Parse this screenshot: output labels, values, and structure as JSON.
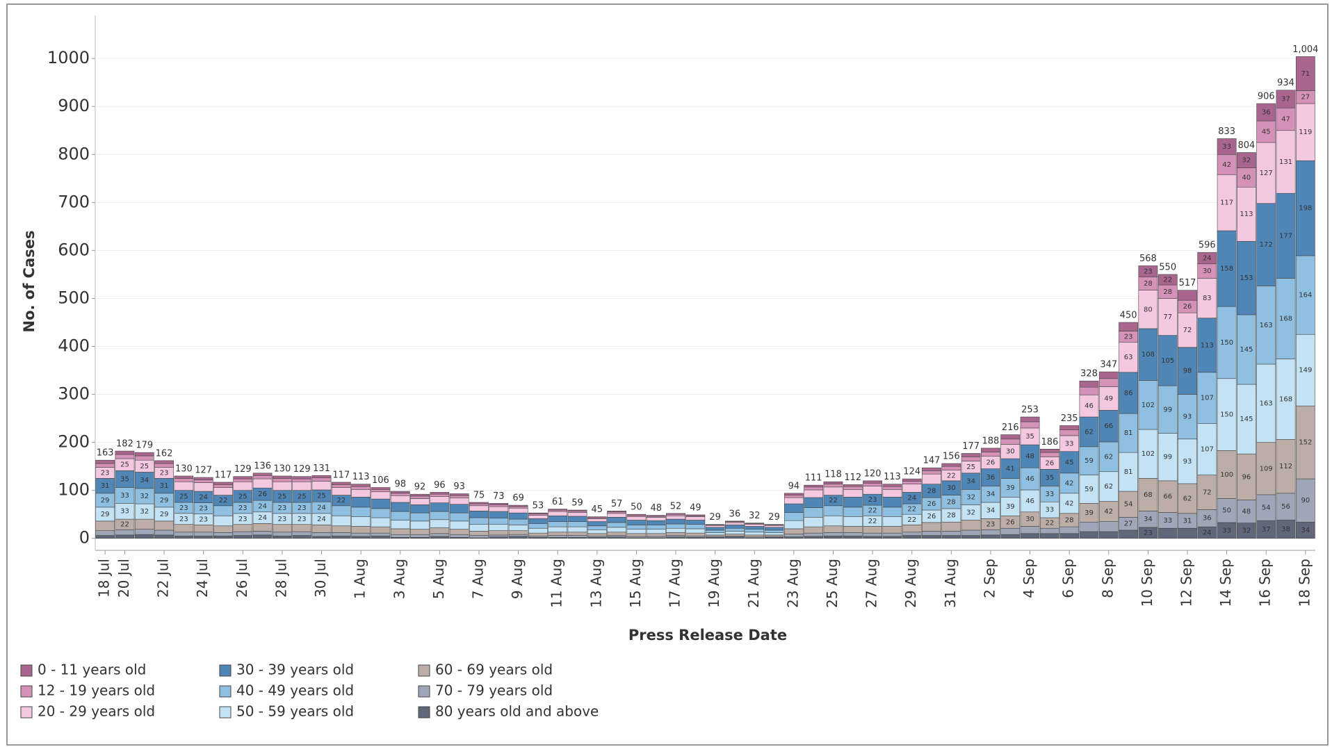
{
  "chart_data": {
    "type": "stacked_bar",
    "x_label": "Press Release Date",
    "y_label": "No. of Cases",
    "categories": [
      "18 Jul",
      "20 Jul",
      null,
      "22 Jul",
      null,
      "24 Jul",
      null,
      "26 Jul",
      null,
      "28 Jul",
      null,
      "30 Jul",
      null,
      "1 Aug",
      null,
      "3 Aug",
      null,
      "5 Aug",
      null,
      "7 Aug",
      null,
      "9 Aug",
      null,
      "11 Aug",
      null,
      "13 Aug",
      null,
      "15 Aug",
      null,
      "17 Aug",
      null,
      "19 Aug",
      null,
      "21 Aug",
      null,
      "23 Aug",
      null,
      "25 Aug",
      null,
      "27 Aug",
      null,
      "29 Aug",
      null,
      "31 Aug",
      null,
      "2 Sep",
      null,
      "4 Sep",
      null,
      "6 Sep",
      null,
      "8 Sep",
      null,
      "10 Sep",
      null,
      "12 Sep",
      null,
      "14 Sep",
      null,
      "16 Sep",
      null,
      "18 Sep"
    ],
    "series": [
      {
        "name": "0 - 11 years old",
        "color": "#a8668f",
        "values": [
          7,
          7,
          7,
          6,
          5,
          5,
          5,
          5,
          5,
          5,
          5,
          5,
          5,
          5,
          4,
          4,
          4,
          4,
          4,
          3,
          3,
          3,
          2,
          2,
          2,
          2,
          2,
          2,
          2,
          2,
          2,
          1,
          1,
          1,
          1,
          4,
          4,
          5,
          4,
          5,
          5,
          5,
          6,
          6,
          7,
          8,
          9,
          10,
          7,
          9,
          13,
          14,
          18,
          23,
          22,
          21,
          24,
          33,
          32,
          36,
          37,
          71
        ]
      },
      {
        "name": "12 - 19 years old",
        "color": "#d592b9",
        "values": [
          8,
          9,
          9,
          8,
          7,
          6,
          6,
          6,
          7,
          7,
          6,
          7,
          6,
          6,
          5,
          5,
          5,
          5,
          5,
          4,
          4,
          3,
          3,
          3,
          3,
          2,
          3,
          3,
          2,
          3,
          2,
          1,
          2,
          2,
          1,
          5,
          6,
          6,
          6,
          6,
          6,
          6,
          7,
          8,
          9,
          9,
          11,
          13,
          9,
          12,
          16,
          17,
          23,
          28,
          28,
          26,
          30,
          42,
          40,
          45,
          47,
          27
        ]
      },
      {
        "name": "20 - 29 years old",
        "color": "#f5c8e2",
        "values": [
          23,
          25,
          25,
          23,
          18,
          18,
          16,
          18,
          19,
          18,
          18,
          18,
          16,
          16,
          15,
          14,
          13,
          13,
          13,
          11,
          10,
          10,
          7,
          9,
          8,
          6,
          8,
          7,
          7,
          7,
          7,
          4,
          5,
          4,
          4,
          13,
          16,
          17,
          16,
          17,
          16,
          17,
          21,
          22,
          25,
          26,
          30,
          35,
          26,
          33,
          46,
          49,
          63,
          80,
          77,
          72,
          83,
          117,
          113,
          127,
          131,
          119
        ]
      },
      {
        "name": "30 - 39 years old",
        "color": "#4f86b5",
        "values": [
          31,
          35,
          34,
          31,
          25,
          24,
          22,
          25,
          26,
          25,
          25,
          25,
          22,
          21,
          20,
          19,
          17,
          18,
          18,
          14,
          14,
          13,
          10,
          12,
          11,
          9,
          11,
          10,
          9,
          10,
          9,
          6,
          7,
          6,
          6,
          18,
          21,
          22,
          21,
          23,
          21,
          24,
          28,
          30,
          34,
          36,
          41,
          48,
          35,
          45,
          62,
          66,
          86,
          108,
          105,
          98,
          113,
          158,
          153,
          172,
          177,
          198
        ]
      },
      {
        "name": "40 - 49 years old",
        "color": "#8fc0e2",
        "values": [
          29,
          33,
          32,
          29,
          23,
          23,
          21,
          23,
          24,
          23,
          23,
          24,
          21,
          20,
          19,
          18,
          17,
          17,
          17,
          14,
          13,
          12,
          10,
          11,
          11,
          8,
          10,
          9,
          9,
          9,
          9,
          5,
          6,
          6,
          5,
          17,
          20,
          21,
          20,
          22,
          20,
          22,
          26,
          28,
          32,
          34,
          39,
          46,
          33,
          42,
          59,
          62,
          81,
          102,
          99,
          93,
          107,
          150,
          145,
          163,
          168,
          164
        ]
      },
      {
        "name": "50 - 59 years old",
        "color": "#c3e3f4",
        "values": [
          29,
          33,
          32,
          29,
          23,
          23,
          21,
          23,
          24,
          23,
          23,
          24,
          21,
          20,
          19,
          18,
          17,
          17,
          17,
          14,
          13,
          12,
          10,
          11,
          11,
          8,
          10,
          9,
          9,
          9,
          9,
          5,
          6,
          6,
          5,
          17,
          20,
          21,
          20,
          22,
          20,
          22,
          26,
          28,
          32,
          34,
          39,
          46,
          33,
          42,
          59,
          62,
          81,
          102,
          99,
          93,
          107,
          150,
          145,
          163,
          168,
          149
        ]
      },
      {
        "name": "60 - 69 years old",
        "color": "#bcaea6",
        "values": [
          20,
          22,
          21,
          19,
          16,
          15,
          14,
          15,
          16,
          16,
          15,
          16,
          14,
          14,
          13,
          12,
          11,
          12,
          11,
          9,
          9,
          8,
          6,
          7,
          7,
          5,
          7,
          6,
          6,
          6,
          6,
          3,
          4,
          4,
          3,
          11,
          13,
          14,
          13,
          14,
          14,
          15,
          18,
          19,
          21,
          23,
          26,
          30,
          22,
          28,
          39,
          42,
          54,
          68,
          66,
          62,
          72,
          100,
          96,
          109,
          112,
          152
        ]
      },
      {
        "name": "70 - 79 years old",
        "color": "#9ea6b8",
        "values": [
          10,
          11,
          11,
          10,
          8,
          8,
          7,
          8,
          8,
          8,
          8,
          8,
          7,
          7,
          6,
          6,
          6,
          6,
          6,
          5,
          4,
          4,
          3,
          4,
          4,
          3,
          3,
          3,
          3,
          3,
          3,
          2,
          2,
          2,
          2,
          6,
          7,
          7,
          7,
          7,
          7,
          7,
          9,
          9,
          11,
          11,
          13,
          15,
          11,
          14,
          20,
          21,
          27,
          34,
          33,
          31,
          36,
          50,
          48,
          54,
          56,
          90
        ]
      },
      {
        "name": "80 years old and above",
        "color": "#5f6779",
        "values": [
          6,
          7,
          8,
          7,
          5,
          5,
          5,
          6,
          7,
          5,
          6,
          4,
          5,
          4,
          5,
          2,
          2,
          4,
          2,
          1,
          3,
          4,
          2,
          2,
          2,
          2,
          3,
          1,
          1,
          3,
          2,
          2,
          3,
          1,
          2,
          3,
          4,
          5,
          5,
          4,
          4,
          6,
          6,
          6,
          6,
          7,
          8,
          10,
          10,
          10,
          14,
          14,
          17,
          23,
          21,
          21,
          24,
          33,
          32,
          37,
          38,
          34
        ]
      }
    ],
    "totals": {
      "values": [
        163,
        182,
        179,
        162,
        130,
        127,
        117,
        129,
        136,
        130,
        129,
        131,
        117,
        113,
        106,
        98,
        92,
        96,
        93,
        75,
        73,
        69,
        53,
        61,
        59,
        45,
        57,
        50,
        48,
        52,
        49,
        29,
        36,
        32,
        29,
        94,
        111,
        118,
        112,
        120,
        113,
        124,
        147,
        156,
        177,
        188,
        216,
        253,
        186,
        235,
        328,
        347,
        450,
        568,
        550,
        517,
        596,
        833,
        804,
        906,
        934,
        1004
      ],
      "value_labels": [
        "163",
        "182",
        "179",
        "162",
        "130",
        "127",
        "117",
        "129",
        "136",
        "130",
        "129",
        "131",
        "117",
        "113",
        "106",
        "98",
        "92",
        "96",
        "93",
        "75",
        "73",
        "69",
        "53",
        "61",
        "59",
        "45",
        "57",
        "50",
        "48",
        "52",
        "49",
        "29",
        "36",
        "32",
        "29",
        "94",
        "111",
        "118",
        "112",
        "120",
        "113",
        "124",
        "147",
        "156",
        "177",
        "188",
        "216",
        "253",
        "186",
        "235",
        "328",
        "347",
        "450",
        "568",
        "550",
        "517",
        "596",
        "833",
        "804",
        "906",
        "934",
        "1,004"
      ]
    },
    "ylim": [
      -25,
      1090
    ],
    "yticks": [
      0,
      100,
      200,
      300,
      400,
      500,
      600,
      700,
      800,
      900,
      1000
    ],
    "grid": true,
    "stack_order": "bottom-up-reversed"
  }
}
